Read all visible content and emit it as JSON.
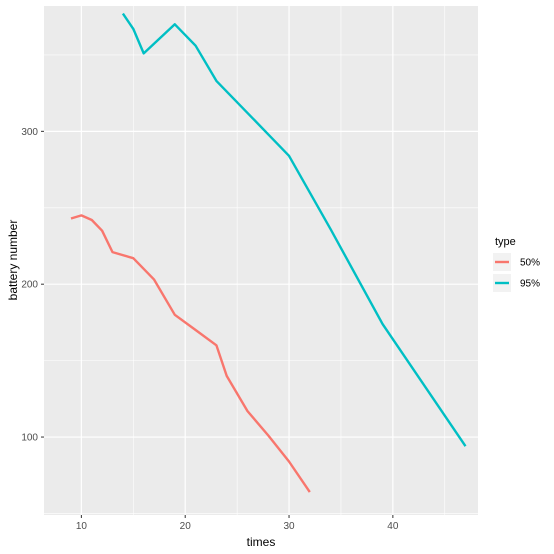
{
  "chart_data": {
    "type": "line",
    "xlabel": "times",
    "ylabel": "battery number",
    "xlim": [
      6.4,
      48.2
    ],
    "ylim": [
      49,
      382
    ],
    "xticks": [
      10,
      20,
      30,
      40
    ],
    "yticks": [
      100,
      200,
      300
    ],
    "grid": true,
    "legend": {
      "title": "type",
      "placement": "right"
    },
    "series": [
      {
        "name": "50%",
        "color": "#F8766D",
        "x": [
          9,
          10,
          11,
          12,
          13,
          15,
          17,
          19,
          21,
          23,
          24,
          26,
          28,
          30,
          32
        ],
        "y": [
          243,
          245,
          242,
          235,
          221,
          217,
          203,
          180,
          170,
          160,
          140,
          117,
          101,
          84,
          64
        ]
      },
      {
        "name": "95%",
        "color": "#00BFC4",
        "x": [
          14,
          15,
          16,
          19,
          21,
          23,
          28,
          30,
          34,
          39,
          47
        ],
        "y": [
          377,
          367,
          351,
          370,
          356,
          333,
          298,
          284,
          236,
          174,
          94
        ]
      }
    ]
  }
}
